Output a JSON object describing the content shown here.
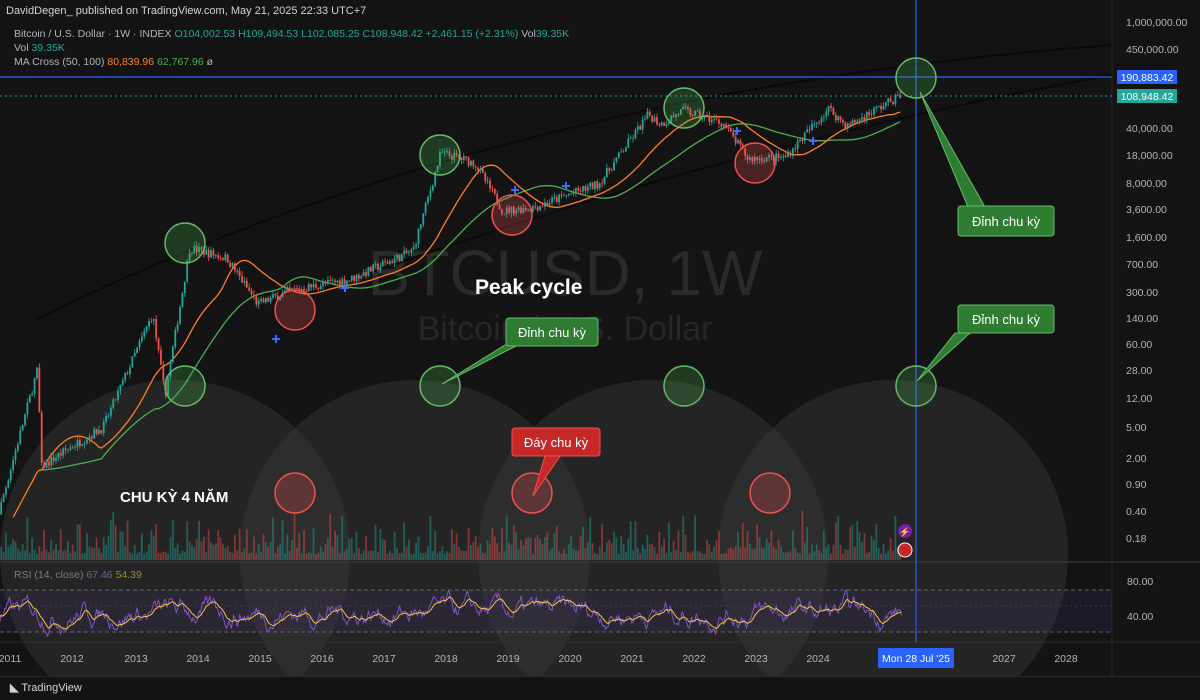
{
  "header": {
    "publish_line": "DavidDegen_ published on TradingView.com, May 21, 2025 22:33 UTC+7"
  },
  "legend": {
    "symbol": "Bitcoin / U.S. Dollar · 1W · INDEX",
    "ohlc": "O104,002.53  H109,494.53  L102,085.25  C108,948.42  +2,461.15 (+2.31%)",
    "vol_label": "Vol",
    "vol_value": "39.35K",
    "vol2_label": "Vol",
    "vol2_value": "39.35K",
    "ma_label": "MA Cross (50, 100)",
    "ma_fast": "80,839.96",
    "ma_slow": "62,767.96",
    "ma_suffix": "ø",
    "rsi_label": "RSI (14, close)",
    "rsi_value": "67.46",
    "rsi_ma": "54.39"
  },
  "watermark": {
    "symbol": "BTCUSD, 1W",
    "name": "Bitcoin / U.S. Dollar"
  },
  "annotations": {
    "peak_cycle": "Peak cycle",
    "cycle_4y": "CHU KỲ 4 NĂM",
    "callout_peak": "Đỉnh chu kỳ",
    "callout_bottom": "Đáy chu kỳ"
  },
  "price_axis": {
    "ticks": [
      "1,000,000.00",
      "450,000.00",
      "40,000.00",
      "18,000.00",
      "8,000.00",
      "3,600.00",
      "1,600.00",
      "700.00",
      "300.00",
      "140.00",
      "60.00",
      "28.00",
      "12.00",
      "5.00",
      "2.00",
      "0.90",
      "0.40",
      "0.18"
    ],
    "line_label": "190,883.42",
    "price_label": "108,948.42"
  },
  "rsi_axis": {
    "ticks": [
      "80.00",
      "40.00"
    ]
  },
  "time_axis": {
    "ticks": [
      "2011",
      "2012",
      "2013",
      "2014",
      "2015",
      "2016",
      "2017",
      "2018",
      "2019",
      "2020",
      "2021",
      "2022",
      "2023",
      "2024",
      "2025",
      "2027",
      "2028"
    ],
    "cursor_label": "Mon 28 Jul '25"
  },
  "footer": {
    "brand": "TradingView"
  },
  "colors": {
    "bg": "#131313",
    "up": "#26a69a",
    "down": "#ef5350",
    "ma_fast": "#ff7f2a",
    "ma_slow": "#4caf50",
    "cursor": "#2962ff",
    "rsi": "#7e57c2",
    "rsi_ma": "#f5c542"
  },
  "chart_data": {
    "type": "line",
    "title": "",
    "scale": "log",
    "x": [
      "2011",
      "2012",
      "2013",
      "2014",
      "2015",
      "2016",
      "2017",
      "2018",
      "2019",
      "2020",
      "2021",
      "2022",
      "2023",
      "2024",
      "2025"
    ],
    "series": [
      {
        "values": [
          1.5,
          5,
          13,
          800,
          300,
          430,
          1000,
          14000,
          3800,
          7500,
          45000,
          46000,
          16500,
          42000,
          108948
        ]
      }
    ],
    "cycle_peaks_years": [
      "2013-12",
      "2017-12",
      "2021-11",
      "2025-07"
    ],
    "cycle_bottoms_years": [
      "2015-01",
      "2018-12",
      "2022-11"
    ],
    "cursor_price": 190883.42,
    "last_close": 108948.42,
    "rsi_range": [
      40,
      80
    ]
  }
}
